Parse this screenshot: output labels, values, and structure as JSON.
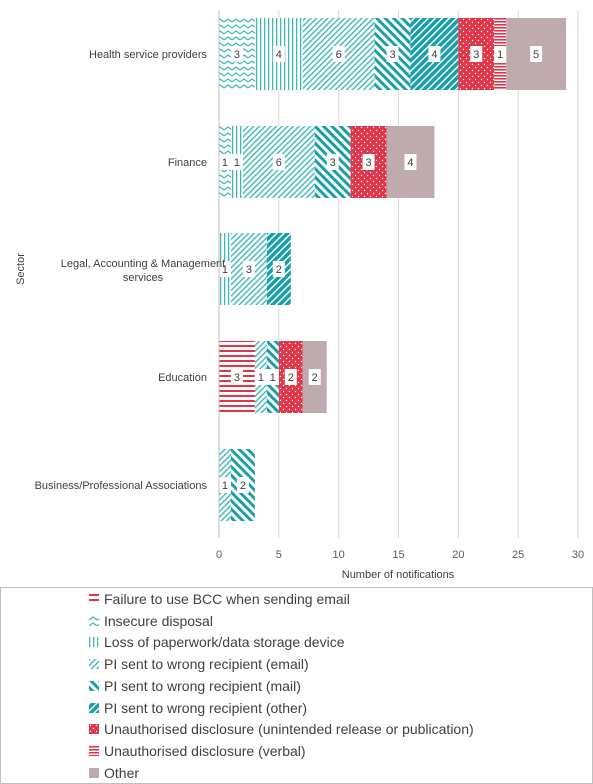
{
  "chart_data": {
    "type": "bar",
    "orientation": "horizontal",
    "stacked": true,
    "categories": [
      "Health service providers",
      "Finance",
      "Legal, Accounting & Management services",
      "Education",
      "Business/Professional Associations"
    ],
    "series": [
      {
        "name": "Failure to use BCC when sending email",
        "color": "#e0364a",
        "pattern": "hlines",
        "values": [
          0,
          0,
          0,
          3,
          0
        ]
      },
      {
        "name": "Insecure disposal",
        "color": "#3fb8b8",
        "pattern": "zigzag",
        "values": [
          3,
          1,
          0,
          0,
          0
        ]
      },
      {
        "name": "Loss of paperwork/data storage device",
        "color": "#3fb8b8",
        "pattern": "vlines",
        "values": [
          4,
          1,
          1,
          0,
          0
        ]
      },
      {
        "name": "PI sent to wrong recipient (email)",
        "color": "#3fb8b8",
        "pattern": "diag-thin",
        "values": [
          6,
          6,
          3,
          1,
          1
        ]
      },
      {
        "name": "PI sent to wrong recipient (mail)",
        "color": "#1a9fa8",
        "pattern": "diag-dash",
        "values": [
          3,
          3,
          0,
          1,
          2
        ]
      },
      {
        "name": "PI sent to wrong recipient (other)",
        "color": "#1a9fa8",
        "pattern": "diag-wide",
        "values": [
          4,
          0,
          2,
          0,
          0
        ]
      },
      {
        "name": "Unauthorised disclosure (unintended release or publication)",
        "color": "#e0364a",
        "pattern": "dots",
        "values": [
          3,
          3,
          0,
          2,
          0
        ]
      },
      {
        "name": "Unauthorised disclosure (verbal)",
        "color": "#e0364a",
        "pattern": "hlines-dense",
        "values": [
          1,
          0,
          0,
          0,
          0
        ]
      },
      {
        "name": "Other",
        "color": "#bfaaae",
        "pattern": "solid",
        "values": [
          5,
          4,
          0,
          2,
          0
        ]
      }
    ],
    "xlabel": "Number of notifications",
    "ylabel": "Sector",
    "xlim": [
      0,
      30
    ],
    "xticks": [
      0,
      5,
      10,
      15,
      20,
      25,
      30
    ],
    "grid": true,
    "legend_position": "bottom"
  }
}
